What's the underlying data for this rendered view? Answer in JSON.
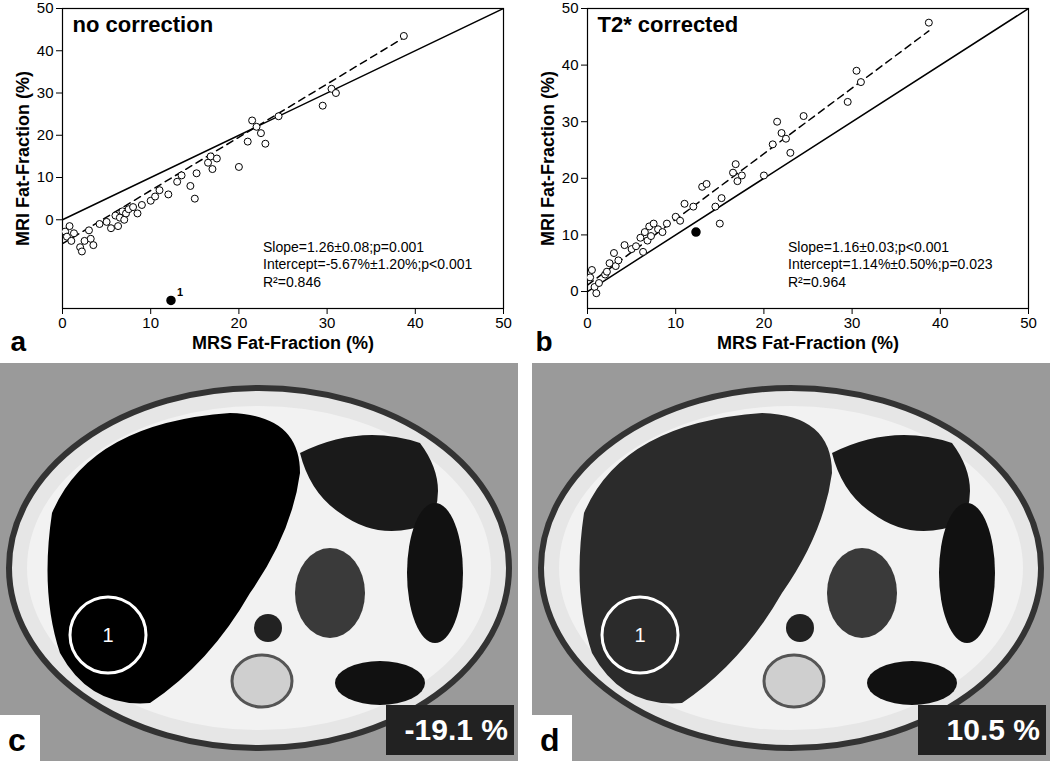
{
  "chart_data": [
    {
      "type": "scatter",
      "panel": "a",
      "title": "no correction",
      "xlabel": "MRS Fat-Fraction (%)",
      "ylabel": "MRI Fat-Fraction (%)",
      "xlim": [
        0,
        50
      ],
      "ylim": [
        -21,
        50
      ],
      "xticks": [
        0,
        10,
        20,
        30,
        40,
        50
      ],
      "yticks": [
        0,
        10,
        20,
        30,
        40,
        50
      ],
      "marker": "hollow circle",
      "color": "#000000",
      "x": [
        0.3,
        0.5,
        0.8,
        1.0,
        1.3,
        2.0,
        2.2,
        2.5,
        3.0,
        3.2,
        3.5,
        4.2,
        5.0,
        5.5,
        6.0,
        6.3,
        6.5,
        6.8,
        7.0,
        7.2,
        7.5,
        8.0,
        8.5,
        9.0,
        10.0,
        10.5,
        11.0,
        12.0,
        13.0,
        13.5,
        14.5,
        15.0,
        15.2,
        16.5,
        16.8,
        17.0,
        17.5,
        20.0,
        21.0,
        21.5,
        22.0,
        22.5,
        23.0,
        24.5,
        29.5,
        30.5,
        31.0,
        38.7
      ],
      "y": [
        -2.8,
        -4.0,
        -1.5,
        -5.0,
        -3.2,
        -6.5,
        -7.5,
        -5.0,
        -2.5,
        -4.5,
        -6.0,
        -1.0,
        -0.5,
        -2.0,
        1.0,
        -1.5,
        0.5,
        2.0,
        0.0,
        1.5,
        2.5,
        3.0,
        1.5,
        3.5,
        4.5,
        5.5,
        7.0,
        6.0,
        9.0,
        10.5,
        8.0,
        5.0,
        11.0,
        13.5,
        15.0,
        12.0,
        14.5,
        12.5,
        18.5,
        23.5,
        22.0,
        20.5,
        18.0,
        24.5,
        27.0,
        31.0,
        30.0,
        43.5
      ],
      "highlight": {
        "x": 12.3,
        "y": -19.1,
        "label": "1",
        "marker": "filled circle"
      },
      "identity_line": {
        "x": [
          0,
          50
        ],
        "y": [
          0,
          50
        ],
        "line_style": "solid"
      },
      "fit_line": {
        "slope": 1.26,
        "intercept": -5.67,
        "x": [
          0,
          38.7
        ],
        "line_style": "dashed"
      },
      "annotation": [
        "Slope=1.26±0.08;p=0.001",
        "Intercept=-5.67%±1.20%;p<0.001",
        "R²=0.846"
      ]
    },
    {
      "type": "scatter",
      "panel": "b",
      "title": "T2* corrected",
      "xlabel": "MRS Fat-Fraction (%)",
      "ylabel": "MRI Fat-Fraction (%)",
      "xlim": [
        0,
        50
      ],
      "ylim": [
        -3,
        50
      ],
      "xticks": [
        0,
        10,
        20,
        30,
        40,
        50
      ],
      "yticks": [
        0,
        10,
        20,
        30,
        40,
        50
      ],
      "marker": "hollow circle",
      "color": "#000000",
      "x": [
        0.3,
        0.5,
        0.8,
        1.0,
        1.3,
        2.0,
        2.2,
        2.5,
        3.0,
        3.2,
        3.5,
        4.2,
        5.0,
        5.5,
        6.0,
        6.3,
        6.5,
        6.8,
        7.0,
        7.2,
        7.5,
        8.0,
        8.5,
        9.0,
        10.0,
        10.5,
        11.0,
        12.0,
        13.0,
        13.5,
        14.5,
        15.0,
        15.2,
        16.5,
        16.8,
        17.0,
        17.5,
        20.0,
        21.0,
        21.5,
        22.0,
        22.5,
        23.0,
        24.5,
        29.5,
        30.5,
        31.0,
        38.7
      ],
      "y": [
        2.5,
        3.8,
        0.8,
        -0.3,
        1.5,
        3.0,
        3.5,
        5.0,
        6.8,
        4.5,
        5.5,
        8.2,
        7.5,
        8.0,
        9.5,
        7.0,
        10.5,
        9.0,
        11.5,
        9.8,
        12.0,
        11.0,
        10.5,
        12.0,
        13.2,
        12.5,
        15.5,
        15.0,
        18.5,
        19.0,
        15.0,
        12.0,
        16.5,
        21.0,
        22.5,
        19.5,
        20.5,
        20.5,
        26.0,
        30.0,
        28.0,
        27.0,
        24.5,
        31.0,
        33.5,
        39.0,
        37.0,
        47.5
      ],
      "highlight": {
        "x": 12.3,
        "y": 10.5,
        "marker": "filled circle"
      },
      "identity_line": {
        "x": [
          0,
          50
        ],
        "y": [
          0,
          50
        ],
        "line_style": "solid"
      },
      "fit_line": {
        "slope": 1.16,
        "intercept": 1.14,
        "x": [
          0,
          38.7
        ],
        "line_style": "dashed"
      },
      "annotation": [
        "Slope=1.16±0.03;p<0.001",
        "Intercept=1.14%±0.50%;p=0.023",
        "R²=0.964"
      ]
    }
  ],
  "images": [
    {
      "panel": "c",
      "roi_label": "1",
      "value_label": "-19.1 %"
    },
    {
      "panel": "d",
      "roi_label": "1",
      "value_label": "10.5 %"
    }
  ]
}
